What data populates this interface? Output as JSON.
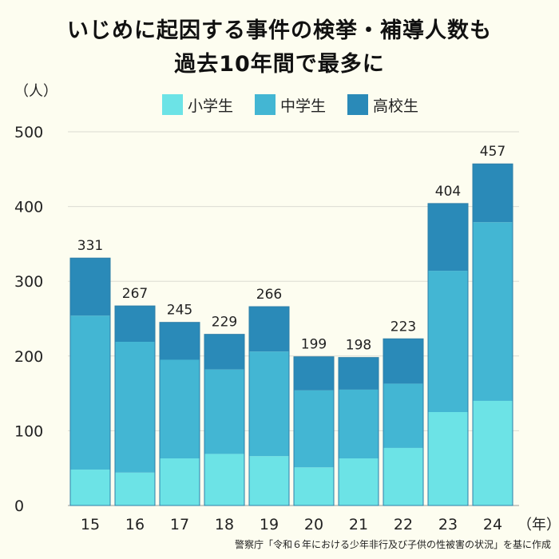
{
  "title_lines": [
    "いじめに起因する事件の検挙・補導人数も",
    "過去10年間で最多に"
  ],
  "y_unit": "（人）",
  "x_unit": "（年）",
  "source": "警察庁「令和６年における少年非行及び子供の性被害の状況」を基に作成",
  "colors": {
    "background": "#fdfdf0",
    "elementary": "#6ce3e6",
    "junior_high": "#43b6d3",
    "high_school": "#2a8ab8",
    "grid": "#dcdcd2"
  },
  "chart_data": {
    "type": "bar",
    "stacked": true,
    "title": "いじめに起因する事件の検挙・補導人数も過去10年間で最多に",
    "xlabel": "（年）",
    "ylabel": "（人）",
    "ylim": [
      0,
      500
    ],
    "yticks": [
      0,
      100,
      200,
      300,
      400,
      500
    ],
    "grid": true,
    "legend_position": "top",
    "categories": [
      "15",
      "16",
      "17",
      "18",
      "19",
      "20",
      "21",
      "22",
      "23",
      "24"
    ],
    "totals": [
      331,
      267,
      245,
      229,
      266,
      199,
      198,
      223,
      404,
      457
    ],
    "series": [
      {
        "name": "小学生",
        "color": "#6ce3e6",
        "values": [
          48,
          44,
          63,
          69,
          66,
          51,
          63,
          77,
          125,
          140
        ]
      },
      {
        "name": "中学生",
        "color": "#43b6d3",
        "values": [
          206,
          175,
          132,
          113,
          140,
          103,
          92,
          86,
          189,
          239
        ]
      },
      {
        "name": "高校生",
        "color": "#2a8ab8",
        "values": [
          77,
          48,
          50,
          47,
          60,
          45,
          43,
          60,
          90,
          78
        ]
      }
    ]
  }
}
